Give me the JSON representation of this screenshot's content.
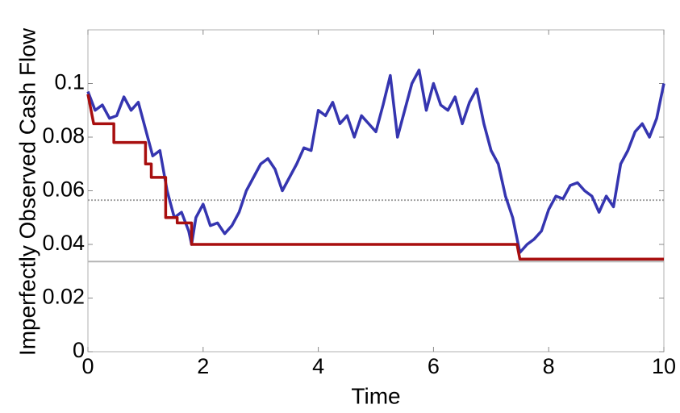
{
  "chart_data": {
    "type": "line",
    "xlabel": "Time",
    "ylabel": "Imperfectly Observed Cash Flow",
    "xlim": [
      0,
      10
    ],
    "ylim": [
      0,
      0.12
    ],
    "xticks": [
      0,
      2,
      4,
      6,
      8,
      10
    ],
    "yticks": [
      0,
      0.02,
      0.04,
      0.06,
      0.08,
      0.1
    ],
    "reference_lines": [
      {
        "value": 0.0565,
        "color": "#a0a0a0",
        "style": "dotted"
      },
      {
        "value": 0.0336,
        "color": "#b4b4b4",
        "style": "solid"
      }
    ],
    "series": [
      {
        "color": "#3535b0",
        "x": [
          0,
          0.125,
          0.25,
          0.375,
          0.5,
          0.625,
          0.75,
          0.875,
          1.0,
          1.125,
          1.25,
          1.375,
          1.5,
          1.625,
          1.75,
          1.8,
          1.875,
          2.0,
          2.125,
          2.25,
          2.375,
          2.5,
          2.625,
          2.75,
          2.875,
          3.0,
          3.125,
          3.25,
          3.375,
          3.5,
          3.625,
          3.75,
          3.875,
          4.0,
          4.125,
          4.25,
          4.375,
          4.5,
          4.625,
          4.75,
          4.875,
          5.0,
          5.125,
          5.25,
          5.375,
          5.5,
          5.625,
          5.75,
          5.875,
          6.0,
          6.125,
          6.25,
          6.375,
          6.5,
          6.625,
          6.75,
          6.875,
          7.0,
          7.125,
          7.25,
          7.375,
          7.5,
          7.625,
          7.75,
          7.875,
          8.0,
          8.125,
          8.25,
          8.375,
          8.5,
          8.625,
          8.75,
          8.875,
          9.0,
          9.125,
          9.25,
          9.375,
          9.5,
          9.625,
          9.75,
          9.875,
          10
        ],
        "values": [
          0.097,
          0.09,
          0.092,
          0.087,
          0.088,
          0.095,
          0.09,
          0.093,
          0.083,
          0.073,
          0.075,
          0.06,
          0.05,
          0.052,
          0.045,
          0.04,
          0.05,
          0.055,
          0.047,
          0.048,
          0.044,
          0.047,
          0.052,
          0.06,
          0.065,
          0.07,
          0.072,
          0.068,
          0.06,
          0.065,
          0.07,
          0.076,
          0.075,
          0.09,
          0.088,
          0.093,
          0.085,
          0.088,
          0.08,
          0.088,
          0.085,
          0.082,
          0.092,
          0.103,
          0.08,
          0.09,
          0.1,
          0.105,
          0.09,
          0.1,
          0.092,
          0.09,
          0.095,
          0.085,
          0.093,
          0.098,
          0.085,
          0.075,
          0.07,
          0.058,
          0.05,
          0.037,
          0.04,
          0.042,
          0.045,
          0.053,
          0.058,
          0.057,
          0.062,
          0.063,
          0.06,
          0.058,
          0.052,
          0.058,
          0.054,
          0.07,
          0.075,
          0.082,
          0.085,
          0.08,
          0.087,
          0.1
        ]
      },
      {
        "color": "#a80f0f",
        "x": [
          0,
          0.1,
          0.1,
          0.45,
          0.45,
          1.0,
          1.0,
          1.1,
          1.1,
          1.35,
          1.35,
          1.55,
          1.55,
          1.8,
          1.8,
          7.45,
          7.5,
          10
        ],
        "values": [
          0.096,
          0.085,
          0.085,
          0.085,
          0.078,
          0.078,
          0.07,
          0.07,
          0.065,
          0.065,
          0.05,
          0.05,
          0.048,
          0.048,
          0.04,
          0.04,
          0.0345,
          0.0345
        ]
      }
    ]
  }
}
